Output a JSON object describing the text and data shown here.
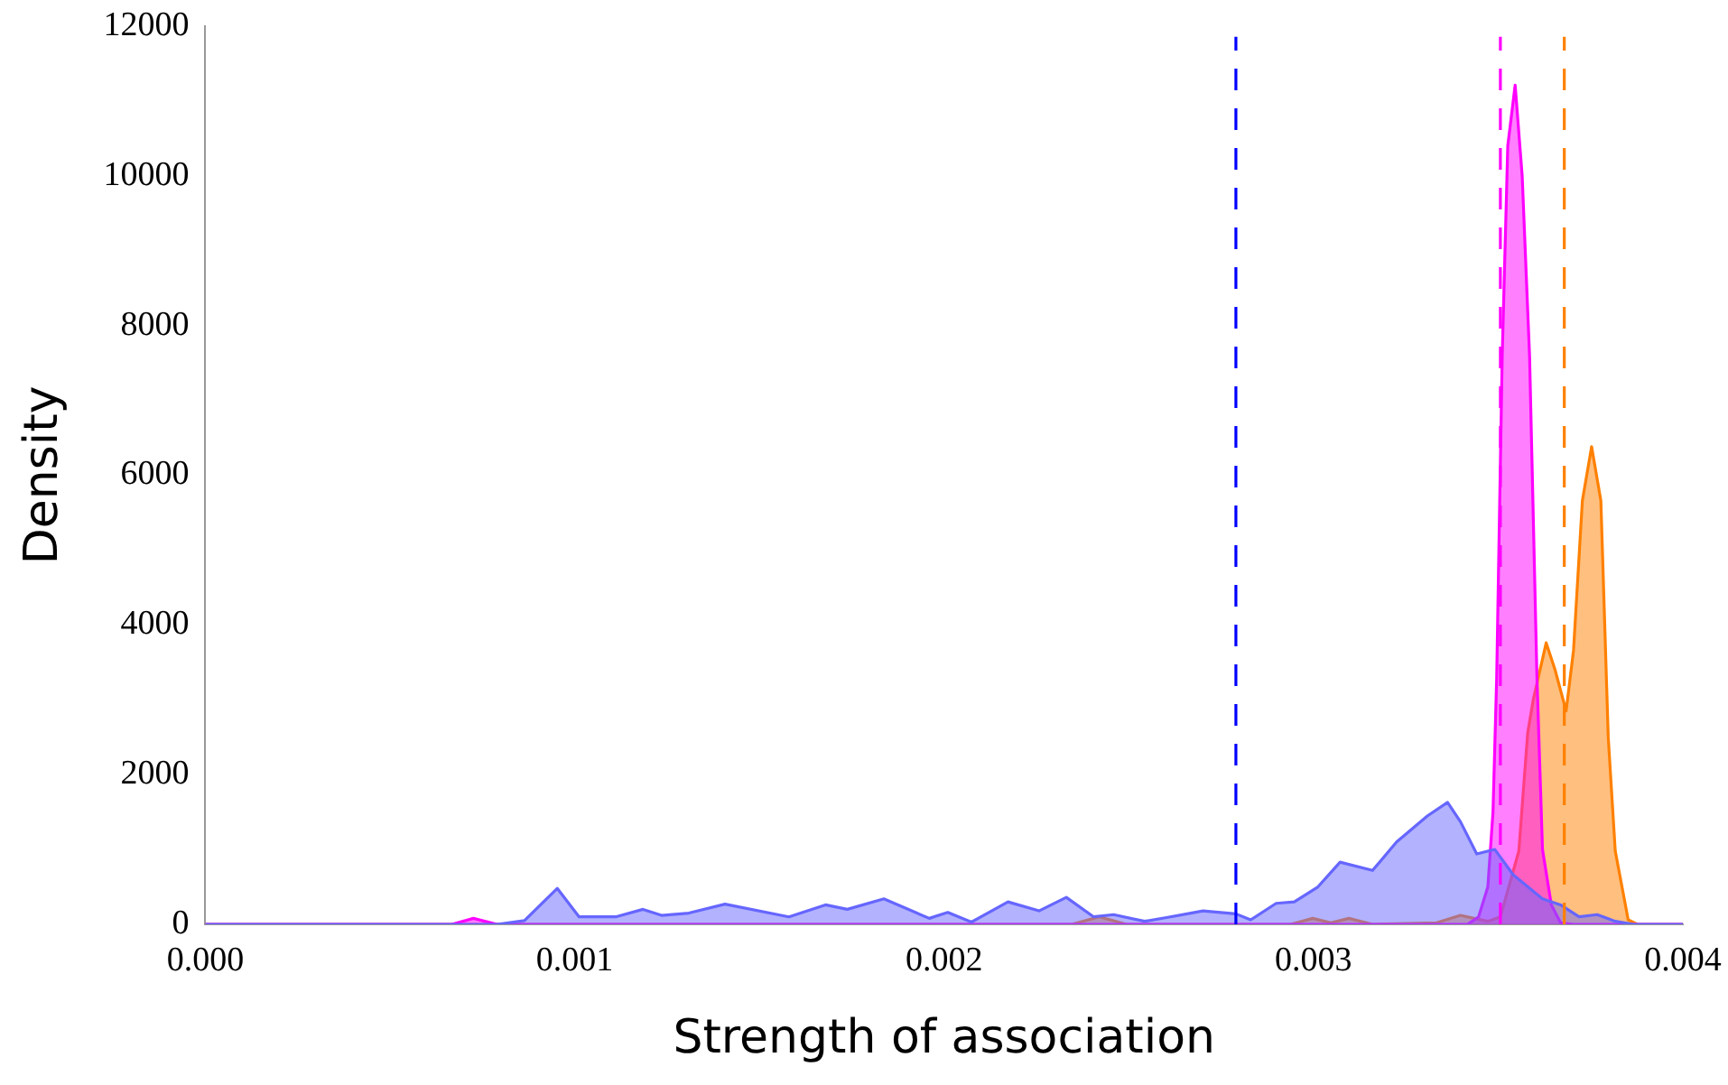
{
  "chart_data": {
    "type": "area",
    "xlabel": "Strength of association",
    "ylabel": "Density",
    "xlim": [
      0,
      0.004
    ],
    "xticks": [
      {
        "value": 0,
        "label": "0.000"
      },
      {
        "value": 0.001,
        "label": "0.001"
      },
      {
        "value": 0.002,
        "label": "0.002"
      },
      {
        "value": 0.003,
        "label": "0.003"
      },
      {
        "value": 0.004,
        "label": "0.004"
      }
    ],
    "ylim": [
      0,
      12000
    ],
    "yticks": [
      0,
      2000,
      4000,
      6000,
      8000,
      10000,
      12000
    ],
    "grid": false,
    "legend": false,
    "marker": "none",
    "series": [
      {
        "color": "#6666ff",
        "x": [
          0,
          0.00079,
          0.000864,
          0.000953,
          0.001012,
          0.001111,
          0.001185,
          0.001235,
          0.001309,
          0.001407,
          0.00158,
          0.001679,
          0.001738,
          0.001837,
          0.00196,
          0.00201,
          0.002074,
          0.002173,
          0.002257,
          0.002331,
          0.002405,
          0.002459,
          0.002543,
          0.002602,
          0.002701,
          0.00279,
          0.00283,
          0.002899,
          0.002948,
          0.003012,
          0.003072,
          0.00316,
          0.003225,
          0.003309,
          0.003363,
          0.003398,
          0.003442,
          0.003491,
          0.003541,
          0.00362,
          0.003669,
          0.003719,
          0.003768,
          0.003817,
          0.003867,
          0.004
        ],
        "values": [
          0,
          0,
          50,
          480,
          100,
          100,
          200,
          120,
          150,
          270,
          100,
          260,
          200,
          340,
          80,
          160,
          30,
          300,
          180,
          360,
          100,
          130,
          40,
          90,
          180,
          140,
          60,
          280,
          300,
          500,
          830,
          720,
          1100,
          1450,
          1630,
          1370,
          940,
          1000,
          660,
          340,
          260,
          100,
          130,
          40,
          0,
          0
        ]
      },
      {
        "color": "#ff00ff",
        "x": [
          0,
          0.000667,
          0.000726,
          0.00079,
          0.003417,
          0.003447,
          0.003472,
          0.003486,
          0.003496,
          0.003511,
          0.003526,
          0.003546,
          0.003565,
          0.003585,
          0.003605,
          0.00362,
          0.003644,
          0.003669,
          0.003704,
          0.004
        ],
        "values": [
          0,
          0,
          80,
          0,
          0,
          100,
          500,
          1500,
          3300,
          7600,
          10400,
          11210,
          10000,
          7600,
          3300,
          1000,
          260,
          20,
          0,
          0
        ]
      },
      {
        "color": "#ff8000",
        "x": [
          0,
          0.002346,
          0.00242,
          0.002494,
          0.002938,
          0.002998,
          0.003047,
          0.003096,
          0.00316,
          0.003333,
          0.003398,
          0.003472,
          0.003506,
          0.003556,
          0.00358,
          0.003595,
          0.00363,
          0.003654,
          0.003684,
          0.003704,
          0.003728,
          0.003753,
          0.003778,
          0.003798,
          0.003817,
          0.003852,
          0.003877,
          0.004
        ],
        "values": [
          0,
          0,
          100,
          0,
          0,
          80,
          20,
          80,
          0,
          20,
          120,
          40,
          100,
          980,
          2560,
          3000,
          3760,
          3400,
          2850,
          3660,
          5660,
          6380,
          5660,
          2500,
          980,
          60,
          0,
          0
        ]
      }
    ],
    "ref_lines": [
      {
        "axis": "x",
        "value": 0.00279,
        "color": "#0000ff",
        "line_style": "dashed"
      },
      {
        "axis": "x",
        "value": 0.003506,
        "color": "#ff00ff",
        "line_style": "dashed"
      },
      {
        "axis": "x",
        "value": 0.003679,
        "color": "#ff8000",
        "line_style": "dashed"
      }
    ]
  }
}
